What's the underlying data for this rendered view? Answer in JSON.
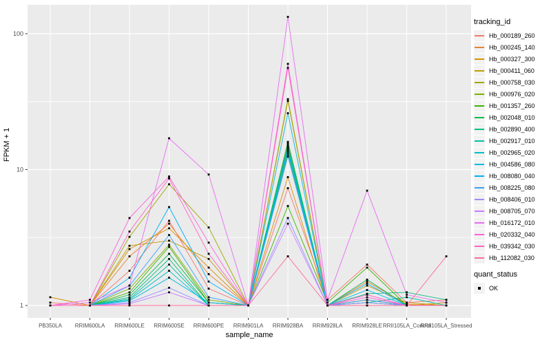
{
  "legend": {
    "tracking_title": "tracking_id",
    "quant_title": "quant_status",
    "quant_ok_label": "OK"
  },
  "style": {
    "panel_bg": "#EBEBEB",
    "grid_color": "#FFFFFF",
    "tick_label_color": "#4D4D4D",
    "tick_mark_color": "#333333",
    "point_color": "#000000",
    "legend_key_bg": "#F2F2F2"
  },
  "chart_data": {
    "type": "line",
    "title": "",
    "x_label": "sample_name",
    "y_label": "FPKM + 1",
    "y_scale": "log10",
    "y_ticks": [
      1,
      10,
      100
    ],
    "y_minor_ticks": [
      3.162,
      31.62
    ],
    "ylim_log10": [
      -0.08,
      2.21
    ],
    "grid": true,
    "legend_position": "right",
    "point_marker": "small black square (quant_status = OK)",
    "categories": [
      "PB350LA",
      "RRIM600LA",
      "RRIM600LE",
      "RRIM600SE",
      "RRIM600PE",
      "RRIM901LA",
      "RRIM928BA",
      "RRIM928LA",
      "RRIM928LE",
      "RRII105LA_Control",
      "RRII105LA_Stressed"
    ],
    "series": [
      {
        "name": "Hb_000189_260",
        "color": "#F8766D",
        "values": [
          1.05,
          1.0,
          1.8,
          4.2,
          1.33,
          1.0,
          7.3,
          1.1,
          2.0,
          1.05,
          1.1
        ]
      },
      {
        "name": "Hb_000245_140",
        "color": "#EA8331",
        "values": [
          1.0,
          1.0,
          2.3,
          4.0,
          1.7,
          1.0,
          15.5,
          1.0,
          1.5,
          1.02,
          1.0
        ]
      },
      {
        "name": "Hb_000327_300",
        "color": "#D89000",
        "values": [
          1.15,
          1.0,
          2.6,
          3.7,
          1.9,
          1.0,
          8.8,
          1.0,
          1.1,
          1.0,
          1.05
        ]
      },
      {
        "name": "Hb_000411_060",
        "color": "#C09B00",
        "values": [
          1.0,
          1.0,
          2.75,
          3.0,
          2.2,
          1.0,
          32.0,
          1.0,
          1.4,
          1.05,
          1.0
        ]
      },
      {
        "name": "Hb_000758_030",
        "color": "#A3A500",
        "values": [
          1.0,
          1.0,
          3.2,
          7.8,
          3.75,
          1.0,
          33.0,
          1.0,
          1.1,
          1.0,
          1.0
        ]
      },
      {
        "name": "Hb_000976_020",
        "color": "#7CAE00",
        "values": [
          1.0,
          1.0,
          1.33,
          2.8,
          1.1,
          1.0,
          13.0,
          1.0,
          1.05,
          1.0,
          1.0
        ]
      },
      {
        "name": "Hb_001357_260",
        "color": "#39B600",
        "values": [
          1.0,
          1.0,
          1.25,
          2.7,
          1.05,
          1.0,
          5.4,
          1.05,
          1.9,
          1.0,
          1.0
        ]
      },
      {
        "name": "Hb_002048_010",
        "color": "#00BB4E",
        "values": [
          1.0,
          1.0,
          1.2,
          2.4,
          1.05,
          1.0,
          16.0,
          1.0,
          1.55,
          1.0,
          1.0
        ]
      },
      {
        "name": "Hb_002890_400",
        "color": "#00BF7D",
        "values": [
          1.0,
          1.0,
          1.15,
          2.2,
          1.0,
          1.0,
          15.0,
          1.0,
          1.22,
          1.25,
          1.1
        ]
      },
      {
        "name": "Hb_002917_010",
        "color": "#00C1A3",
        "values": [
          1.0,
          1.0,
          1.12,
          2.0,
          1.0,
          1.0,
          14.5,
          1.0,
          1.05,
          1.15,
          1.0
        ]
      },
      {
        "name": "Hb_002965_020",
        "color": "#00BFC4",
        "values": [
          1.0,
          1.0,
          1.1,
          1.8,
          1.0,
          1.0,
          14.0,
          1.0,
          1.05,
          1.0,
          1.0
        ]
      },
      {
        "name": "Hb_004586_080",
        "color": "#00BAE0",
        "values": [
          1.0,
          1.0,
          1.08,
          1.6,
          1.05,
          1.0,
          26.0,
          1.0,
          1.3,
          1.0,
          1.0
        ]
      },
      {
        "name": "Hb_008080_040",
        "color": "#00B0F6",
        "values": [
          1.0,
          1.0,
          1.6,
          5.3,
          1.5,
          1.0,
          13.5,
          1.0,
          1.45,
          1.0,
          1.0
        ]
      },
      {
        "name": "Hb_008225_080",
        "color": "#35A2FF",
        "values": [
          1.0,
          1.0,
          1.4,
          3.3,
          1.15,
          1.0,
          12.5,
          1.0,
          1.1,
          1.0,
          1.0
        ]
      },
      {
        "name": "Hb_008406_010",
        "color": "#9590FF",
        "values": [
          1.0,
          1.0,
          1.05,
          1.35,
          1.0,
          1.0,
          4.4,
          1.0,
          1.05,
          1.0,
          1.0
        ]
      },
      {
        "name": "Hb_008705_070",
        "color": "#C77CFF",
        "values": [
          1.0,
          1.0,
          1.03,
          1.25,
          1.0,
          1.0,
          4.0,
          1.0,
          1.0,
          1.0,
          1.0
        ]
      },
      {
        "name": "Hb_016172_010",
        "color": "#E76BF3",
        "values": [
          1.0,
          1.05,
          1.4,
          17.0,
          9.2,
          1.0,
          133.0,
          1.1,
          7.0,
          1.2,
          1.05
        ]
      },
      {
        "name": "Hb_020332_040",
        "color": "#FA62DB",
        "values": [
          1.0,
          1.1,
          4.4,
          8.9,
          2.9,
          1.0,
          60.0,
          1.0,
          1.15,
          1.0,
          1.0
        ]
      },
      {
        "name": "Hb_039342_030",
        "color": "#FF61C3",
        "values": [
          1.0,
          1.0,
          3.5,
          8.6,
          2.4,
          1.0,
          56.0,
          1.0,
          1.2,
          1.0,
          1.0
        ]
      },
      {
        "name": "Hb_112082_030",
        "color": "#FF6A98",
        "values": [
          1.0,
          1.0,
          1.0,
          1.0,
          1.0,
          1.0,
          2.3,
          1.0,
          1.0,
          1.0,
          2.3
        ]
      }
    ]
  }
}
